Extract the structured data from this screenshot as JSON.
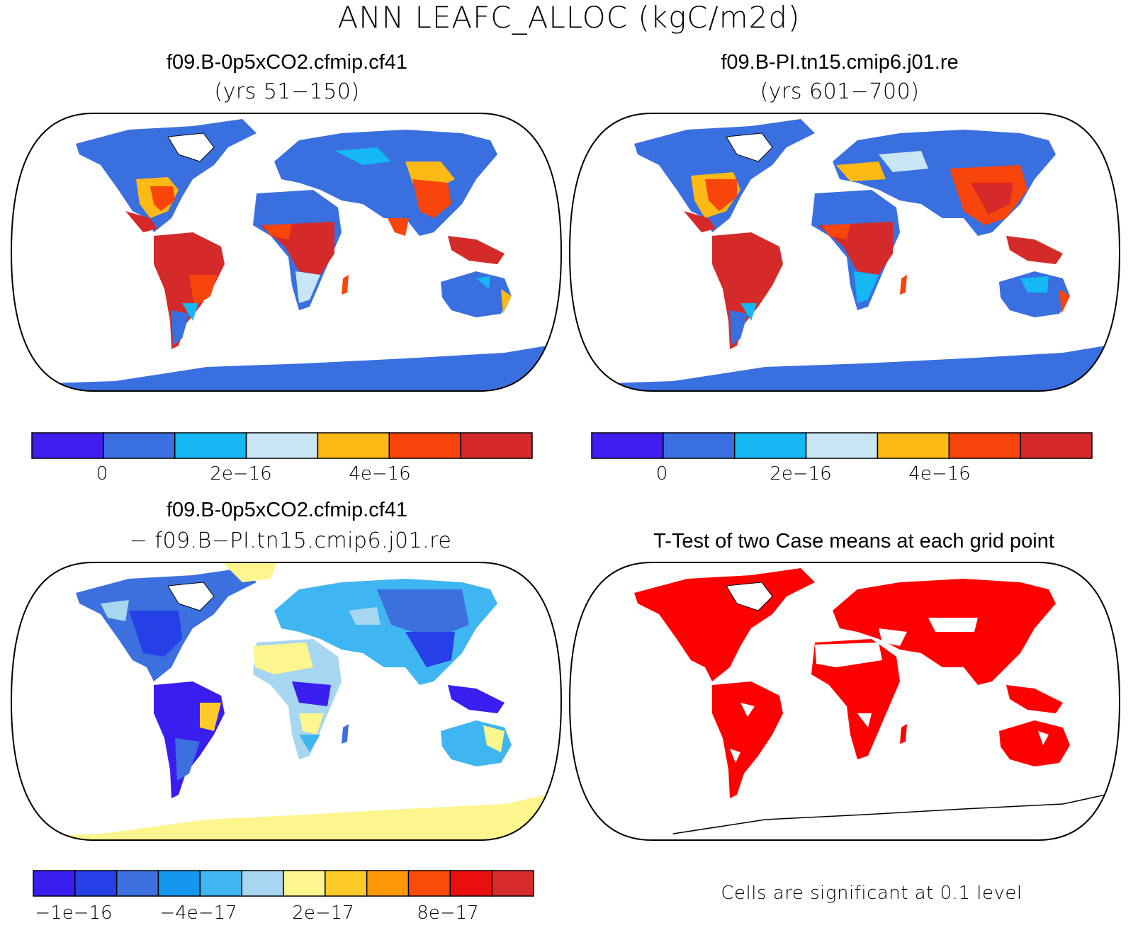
{
  "title": "ANN LEAFC_ALLOC (kgC/m2d)",
  "panels": {
    "top_left": {
      "case": "f09.B-0p5xCO2.cfmip.cf41",
      "years": "(yrs 51−150)"
    },
    "top_right": {
      "case": "f09.B-PI.tn15.cmip6.j01.re",
      "years": "(yrs 601−700)"
    },
    "bottom_left": {
      "case": "f09.B-0p5xCO2.cfmip.cf41",
      "minus_case": "− f09.B−PI.tn15.cmip6.j01.re"
    },
    "bottom_right": {
      "title": "T-Test of two Case means at each grid point",
      "note": "Cells are significant at 0.1 level"
    }
  },
  "colorbar_abs": {
    "colors": [
      "#3f1ff0",
      "#3a6fe0",
      "#15b8f3",
      "#c8e6f5",
      "#fdb914",
      "#f8450c",
      "#d52a2a"
    ],
    "labels": [
      "0",
      "2e−16",
      "4e−16"
    ]
  },
  "colorbar_diff": {
    "colors": [
      "#3a1ef0",
      "#2440e6",
      "#3b70de",
      "#1597ef",
      "#3fb6f1",
      "#a6d6f0",
      "#fdf58e",
      "#fdca2a",
      "#fd9906",
      "#fb4c0a",
      "#ea0e0e",
      "#d52b2b"
    ],
    "labels": [
      "−1e−16",
      "−4e−17",
      "2e−17",
      "8e−17"
    ]
  },
  "significance_color": "#ff0000"
}
